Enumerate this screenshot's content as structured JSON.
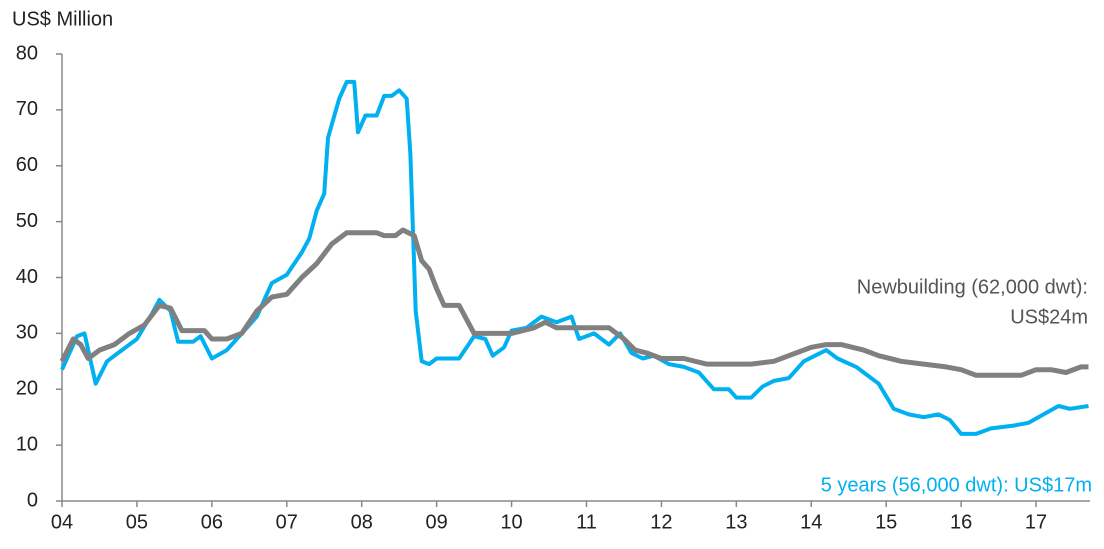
{
  "chart_data": {
    "type": "line",
    "y_label": "US$ Million",
    "xlim": [
      2004,
      2017.72
    ],
    "xticks": [
      {
        "value": 2004,
        "label": "04"
      },
      {
        "value": 2005,
        "label": "05"
      },
      {
        "value": 2006,
        "label": "06"
      },
      {
        "value": 2007,
        "label": "07"
      },
      {
        "value": 2008,
        "label": "08"
      },
      {
        "value": 2009,
        "label": "09"
      },
      {
        "value": 2010,
        "label": "10"
      },
      {
        "value": 2011,
        "label": "11"
      },
      {
        "value": 2012,
        "label": "12"
      },
      {
        "value": 2013,
        "label": "13"
      },
      {
        "value": 2014,
        "label": "14"
      },
      {
        "value": 2015,
        "label": "15"
      },
      {
        "value": 2016,
        "label": "16"
      },
      {
        "value": 2017,
        "label": "17"
      }
    ],
    "ylim": [
      0,
      80
    ],
    "yticks": [
      0,
      10,
      20,
      30,
      40,
      50,
      60,
      70,
      80
    ],
    "grid": false,
    "series": [
      {
        "name": "5 years (56,000 dwt): US$17m",
        "color": "#00b0f0",
        "x": [
          2004.0,
          2004.2,
          2004.3,
          2004.45,
          2004.6,
          2004.8,
          2005.0,
          2005.2,
          2005.3,
          2005.45,
          2005.55,
          2005.75,
          2005.85,
          2006.0,
          2006.2,
          2006.4,
          2006.6,
          2006.8,
          2007.0,
          2007.2,
          2007.3,
          2007.4,
          2007.5,
          2007.55,
          2007.7,
          2007.8,
          2007.9,
          2007.95,
          2008.05,
          2008.2,
          2008.3,
          2008.4,
          2008.5,
          2008.6,
          2008.65,
          2008.72,
          2008.8,
          2008.9,
          2009.0,
          2009.3,
          2009.5,
          2009.65,
          2009.75,
          2009.9,
          2010.0,
          2010.2,
          2010.4,
          2010.6,
          2010.8,
          2010.9,
          2011.1,
          2011.3,
          2011.45,
          2011.6,
          2011.75,
          2011.9,
          2012.1,
          2012.3,
          2012.5,
          2012.7,
          2012.9,
          2013.0,
          2013.2,
          2013.35,
          2013.5,
          2013.7,
          2013.9,
          2014.05,
          2014.2,
          2014.35,
          2014.6,
          2014.9,
          2015.1,
          2015.3,
          2015.5,
          2015.7,
          2015.85,
          2016.0,
          2016.2,
          2016.4,
          2016.7,
          2016.9,
          2017.1,
          2017.3,
          2017.45,
          2017.7
        ],
        "values": [
          23.5,
          29.5,
          30,
          21,
          25,
          27,
          29,
          33.5,
          36,
          34,
          28.5,
          28.5,
          29.5,
          25.5,
          27,
          30,
          33,
          39,
          40.5,
          44.5,
          47,
          52,
          55,
          65,
          72,
          75,
          75,
          66,
          69,
          69,
          72.5,
          72.5,
          73.5,
          72,
          62,
          34,
          25,
          24.5,
          25.5,
          25.5,
          29.5,
          29,
          26,
          27.5,
          30.5,
          31,
          33,
          32,
          33,
          29,
          30,
          28,
          30,
          26.5,
          25.5,
          26,
          24.5,
          24,
          23,
          20,
          20,
          18.5,
          18.5,
          20.5,
          21.5,
          22,
          25,
          26,
          27,
          25.5,
          24,
          21,
          16.5,
          15.5,
          15,
          15.5,
          14.5,
          12,
          12,
          13,
          13.5,
          14,
          15.5,
          17,
          16.5,
          17
        ]
      },
      {
        "name": "Newbuilding (62,000 dwt):",
        "color": "#808080",
        "x": [
          2004.0,
          2004.15,
          2004.25,
          2004.35,
          2004.5,
          2004.7,
          2004.9,
          2005.1,
          2005.3,
          2005.45,
          2005.6,
          2005.9,
          2006.0,
          2006.2,
          2006.4,
          2006.6,
          2006.8,
          2007.0,
          2007.2,
          2007.4,
          2007.6,
          2007.8,
          2008.2,
          2008.3,
          2008.45,
          2008.55,
          2008.7,
          2008.8,
          2008.9,
          2009.0,
          2009.1,
          2009.3,
          2009.5,
          2009.8,
          2010.0,
          2010.3,
          2010.45,
          2010.6,
          2011.0,
          2011.3,
          2011.5,
          2011.65,
          2011.8,
          2012.0,
          2012.3,
          2012.6,
          2013.0,
          2013.2,
          2013.5,
          2013.8,
          2014.0,
          2014.2,
          2014.4,
          2014.7,
          2014.9,
          2015.2,
          2015.5,
          2015.8,
          2016.0,
          2016.2,
          2016.5,
          2016.8,
          2017.0,
          2017.2,
          2017.4,
          2017.6,
          2017.7
        ],
        "values": [
          25,
          29,
          28,
          25.5,
          27,
          28,
          30,
          31.5,
          35,
          34.5,
          30.5,
          30.5,
          29,
          29,
          30,
          34,
          36.5,
          37,
          40,
          42.5,
          46,
          48,
          48,
          47.5,
          47.5,
          48.5,
          47.5,
          43,
          41.5,
          38,
          35,
          35,
          30,
          30,
          30,
          31,
          32,
          31,
          31,
          31,
          29,
          27,
          26.5,
          25.5,
          25.5,
          24.5,
          24.5,
          24.5,
          25,
          26.5,
          27.5,
          28,
          28,
          27,
          26,
          25,
          24.5,
          24,
          23.5,
          22.5,
          22.5,
          22.5,
          23.5,
          23.5,
          23,
          24,
          24
        ]
      }
    ],
    "annotations": [
      "US$24m"
    ]
  }
}
